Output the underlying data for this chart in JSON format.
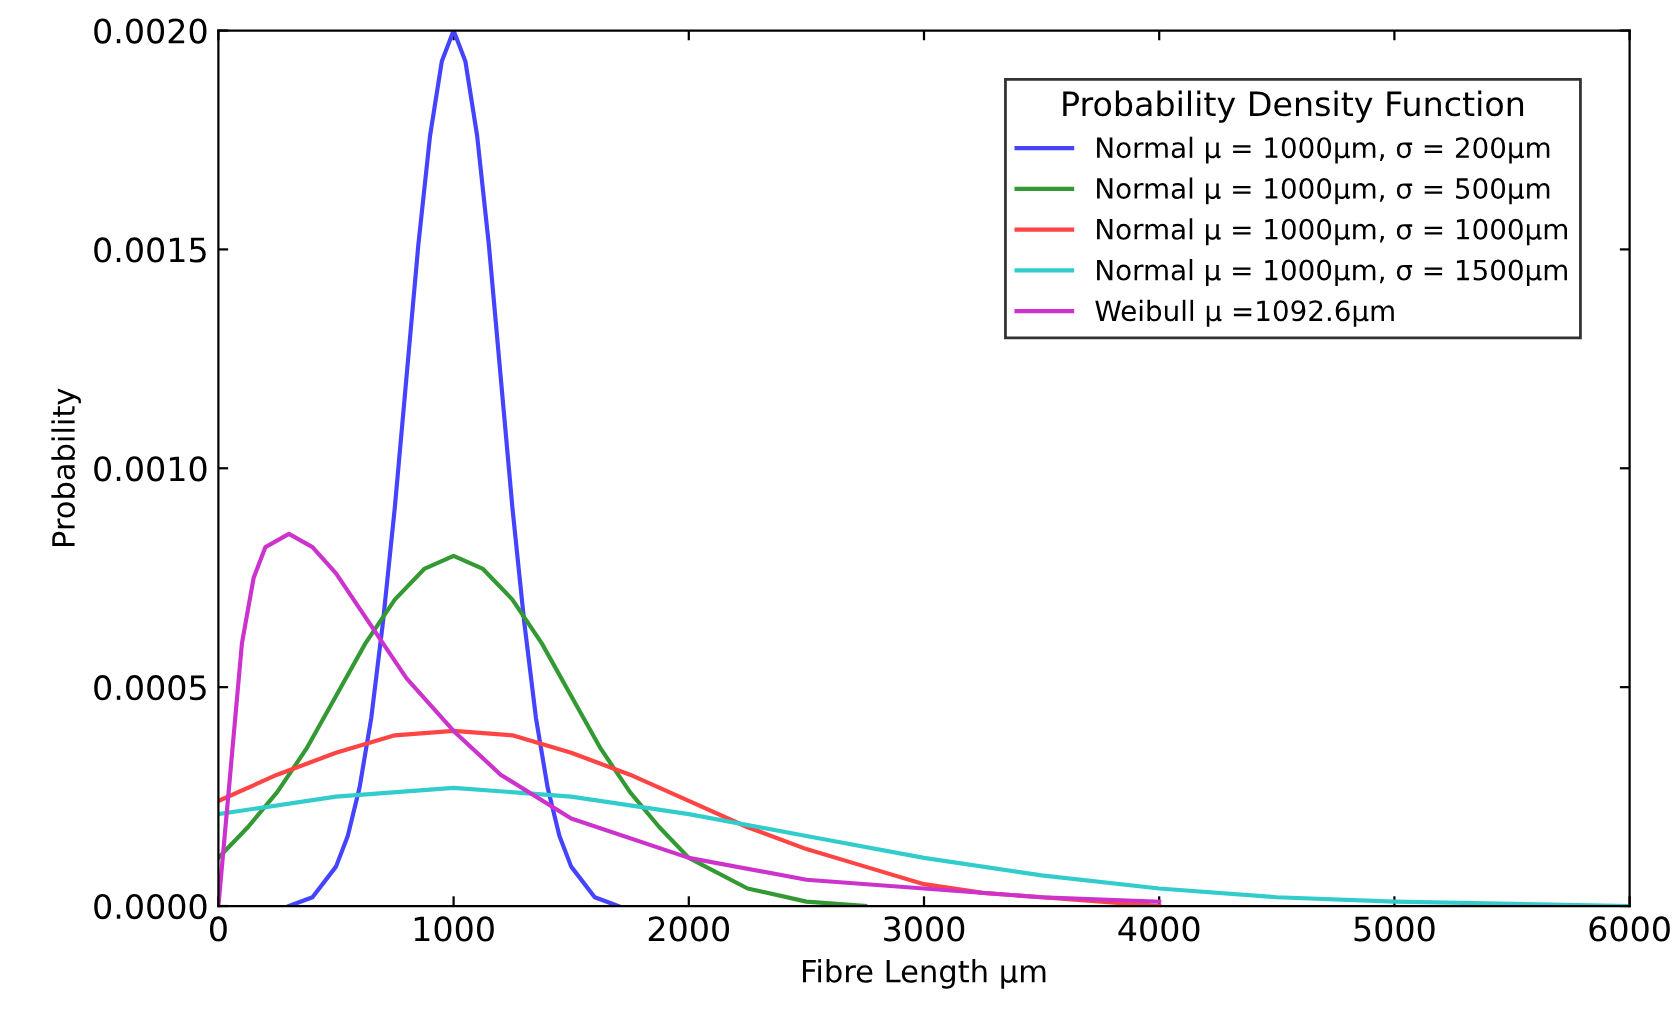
{
  "chart_data": {
    "type": "line",
    "xlabel": "Fibre Length μm",
    "ylabel": "Probability",
    "legend_title": "Probability Density Function",
    "legend": "top right",
    "grid": false,
    "xlim": [
      0,
      6000
    ],
    "xticks": [
      0,
      1000,
      2000,
      3000,
      4000,
      5000,
      6000
    ],
    "ylim": [
      0,
      0.002
    ],
    "yticks": [
      {
        "value": 0,
        "label": "0.0000"
      },
      {
        "value": 0.0005,
        "label": "0.0005"
      },
      {
        "value": 0.001,
        "label": "0.0010"
      },
      {
        "value": 0.0015,
        "label": "0.0015"
      },
      {
        "value": 0.002,
        "label": "0.0020"
      }
    ],
    "series": [
      {
        "name": "Normal μ = 1000μm, σ = 200μm",
        "color": "#4444ff",
        "x": [
          300,
          400,
          500,
          550,
          600,
          650,
          700,
          750,
          800,
          850,
          900,
          950,
          1000,
          1050,
          1100,
          1150,
          1200,
          1250,
          1300,
          1350,
          1400,
          1450,
          1500,
          1600,
          1700
        ],
        "values": [
          0,
          2e-05,
          9e-05,
          0.00016,
          0.00027,
          0.00043,
          0.00065,
          0.00091,
          0.00121,
          0.00151,
          0.00176,
          0.00193,
          0.002,
          0.00193,
          0.00176,
          0.00151,
          0.00121,
          0.00091,
          0.00065,
          0.00043,
          0.00027,
          0.00016,
          9e-05,
          2e-05,
          0
        ]
      },
      {
        "name": "Normal μ = 1000μm, σ = 500μm",
        "color": "#339933",
        "x": [
          0,
          125,
          250,
          375,
          500,
          625,
          750,
          875,
          1000,
          1125,
          1250,
          1375,
          1500,
          1625,
          1750,
          1875,
          2000,
          2250,
          2500,
          2750
        ],
        "values": [
          0.00011,
          0.00018,
          0.00026,
          0.00036,
          0.00048,
          0.0006,
          0.0007,
          0.00077,
          0.0008,
          0.00077,
          0.0007,
          0.0006,
          0.00048,
          0.00036,
          0.00026,
          0.00018,
          0.00011,
          4e-05,
          1e-05,
          0
        ]
      },
      {
        "name": "Normal μ = 1000μm, σ = 1000μm",
        "color": "#ff4444",
        "x": [
          0,
          250,
          500,
          750,
          1000,
          1250,
          1500,
          1750,
          2000,
          2250,
          2500,
          2750,
          3000,
          3250,
          3500,
          4000
        ],
        "values": [
          0.00024,
          0.0003,
          0.00035,
          0.00039,
          0.0004,
          0.00039,
          0.00035,
          0.0003,
          0.00024,
          0.00018,
          0.00013,
          9e-05,
          5e-05,
          3e-05,
          2e-05,
          0
        ]
      },
      {
        "name": "Normal μ = 1000μm, σ = 1500μm",
        "color": "#33cccc",
        "x": [
          0,
          500,
          1000,
          1500,
          2000,
          2500,
          3000,
          3500,
          4000,
          4500,
          5000,
          6000
        ],
        "values": [
          0.00021,
          0.00025,
          0.00027,
          0.00025,
          0.00021,
          0.00016,
          0.00011,
          7e-05,
          4e-05,
          2e-05,
          1e-05,
          0
        ]
      },
      {
        "name": "Weibull μ =1092.6μm",
        "color": "#cc33cc",
        "x": [
          0,
          50,
          100,
          150,
          200,
          300,
          400,
          500,
          600,
          800,
          1000,
          1200,
          1500,
          2000,
          2500,
          3000,
          3500,
          4000
        ],
        "values": [
          0,
          0.0003,
          0.0006,
          0.00075,
          0.00082,
          0.00085,
          0.00082,
          0.00076,
          0.00068,
          0.00052,
          0.0004,
          0.0003,
          0.0002,
          0.00011,
          6e-05,
          4e-05,
          2e-05,
          1e-05
        ]
      }
    ]
  }
}
